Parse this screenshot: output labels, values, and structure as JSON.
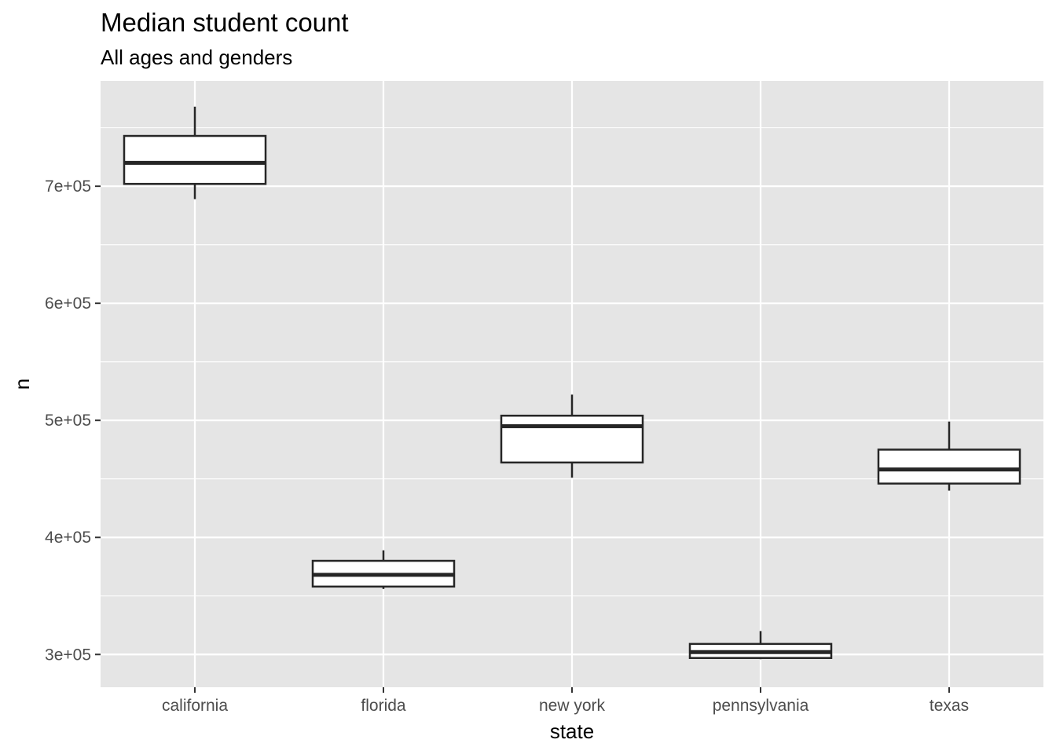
{
  "chart_data": {
    "type": "boxplot",
    "title": "Median student count",
    "subtitle": "All ages and genders",
    "xlabel": "state",
    "ylabel": "n",
    "categories": [
      "california",
      "florida",
      "new york",
      "pennsylvania",
      "texas"
    ],
    "boxes": [
      {
        "category": "california",
        "min": 689000,
        "q1": 702000,
        "median": 720000,
        "q3": 743000,
        "max": 768000
      },
      {
        "category": "florida",
        "min": 356000,
        "q1": 358000,
        "median": 368000,
        "q3": 380000,
        "max": 389000
      },
      {
        "category": "new york",
        "min": 451000,
        "q1": 464000,
        "median": 495000,
        "q3": 504000,
        "max": 522000
      },
      {
        "category": "pennsylvania",
        "min": 296000,
        "q1": 297000,
        "median": 302000,
        "q3": 309000,
        "max": 320000
      },
      {
        "category": "texas",
        "min": 440000,
        "q1": 446000,
        "median": 458000,
        "q3": 475000,
        "max": 499000
      }
    ],
    "ylim": [
      272000,
      790000
    ],
    "yticks": [
      300000,
      400000,
      500000,
      600000,
      700000
    ],
    "ytick_labels": [
      "3e+05",
      "4e+05",
      "5e+05",
      "6e+05",
      "7e+05"
    ],
    "grid": true,
    "legend": "none"
  }
}
